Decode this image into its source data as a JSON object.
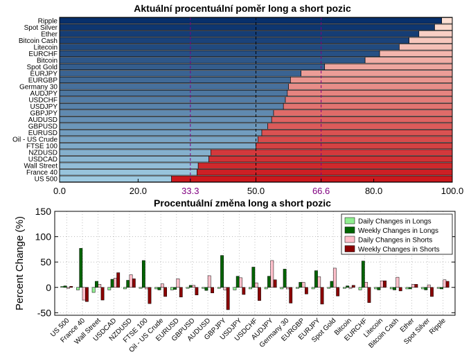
{
  "chart_data": [
    {
      "type": "bar",
      "orientation": "horizontal",
      "stacked": true,
      "title": "Aktuální procentuální poměr long a short pozic",
      "categories": [
        "Ripple",
        "Spot Silver",
        "Ether",
        "Bitcoin Cash",
        "Litecoin",
        "EURCHF",
        "Bitcoin",
        "Spot Gold",
        "EURJPY",
        "EURGBP",
        "Germany 30",
        "AUDJPY",
        "USDCHF",
        "USDJPY",
        "GBPJPY",
        "AUDUSD",
        "GBPUSD",
        "EURUSD",
        "Oil - US Crude",
        "FTSE 100",
        "NZDUSD",
        "USDCAD",
        "Wall Street",
        "France 40",
        "US 500"
      ],
      "series": [
        {
          "role": "long",
          "values": [
            97.3,
            95.5,
            91.5,
            89.0,
            86.5,
            81.5,
            77.8,
            67.5,
            61.5,
            58.8,
            58.3,
            58.0,
            57.5,
            57.0,
            54.5,
            54.0,
            53.0,
            51.5,
            50.5,
            50.0,
            38.5,
            38.0,
            35.3,
            35.0,
            28.5
          ]
        },
        {
          "role": "short",
          "values": [
            2.7,
            4.5,
            8.5,
            11.0,
            13.5,
            18.5,
            22.2,
            32.5,
            38.5,
            41.2,
            41.7,
            42.0,
            42.5,
            43.0,
            45.5,
            46.0,
            47.0,
            48.5,
            49.5,
            50.0,
            61.5,
            62.0,
            64.7,
            65.0,
            71.5
          ]
        }
      ],
      "xlim": [
        0,
        100
      ],
      "xticks": [
        "0.0",
        "20.0",
        "33.3",
        "50.0",
        "66.6",
        "80.0",
        "100.0"
      ],
      "reference_lines": [
        33.3,
        50.0,
        66.6
      ]
    },
    {
      "type": "bar",
      "title": "Procentuální změna long a short pozic",
      "ylabel": "Percent Change (%)",
      "ylim": [
        -55,
        150
      ],
      "yticks": [
        -50,
        0,
        50,
        100,
        150
      ],
      "grid": true,
      "legend_position": "top-right",
      "categories": [
        "US 500",
        "France 40",
        "Wall Street",
        "USDCAD",
        "NZDUSD",
        "FTSE 100",
        "Oil - US Crude",
        "EURUSD",
        "GBPUSD",
        "AUDUSD",
        "GBPJPY",
        "USDJPY",
        "USDCHF",
        "AUDJPY",
        "Germany 30",
        "EURGBP",
        "EURJPY",
        "Spot Gold",
        "Bitcoin",
        "EURCHF",
        "Litecoin",
        "Bitcoin Cash",
        "Ether",
        "Spot Silver",
        "Ripple"
      ],
      "series": [
        {
          "name": "Daily Changes in Longs",
          "color": "#90ee90",
          "values": [
            2,
            -5,
            -10,
            -5,
            -3,
            -2,
            -3,
            -5,
            -2,
            -2,
            -2,
            -5,
            -3,
            -3,
            -3,
            -2,
            -3,
            -2,
            -2,
            -5,
            -3,
            -3,
            -3,
            -3,
            -2
          ]
        },
        {
          "name": "Weekly Changes in Longs",
          "color": "#006400",
          "values": [
            3,
            77,
            12,
            16,
            14,
            53,
            -5,
            -4,
            4,
            -6,
            63,
            22,
            40,
            22,
            36,
            10,
            33,
            12,
            3,
            52,
            -5,
            -5,
            -3,
            -5,
            -3
          ]
        },
        {
          "name": "Daily Changes in Shorts",
          "color": "#ffc0cb",
          "values": [
            -2,
            -25,
            6,
            18,
            25,
            -3,
            7,
            17,
            4,
            23,
            -5,
            19,
            9,
            53,
            -3,
            10,
            21,
            38,
            -2,
            10,
            13,
            20,
            6,
            5,
            15
          ]
        },
        {
          "name": "Weekly Changes in Shorts",
          "color": "#8b0000",
          "values": [
            2,
            -28,
            -25,
            29,
            17,
            -32,
            -18,
            -19,
            -15,
            -11,
            -44,
            -14,
            -26,
            15,
            -31,
            -13,
            -33,
            -17,
            4,
            -30,
            13,
            -7,
            6,
            -18,
            12
          ]
        }
      ]
    }
  ]
}
